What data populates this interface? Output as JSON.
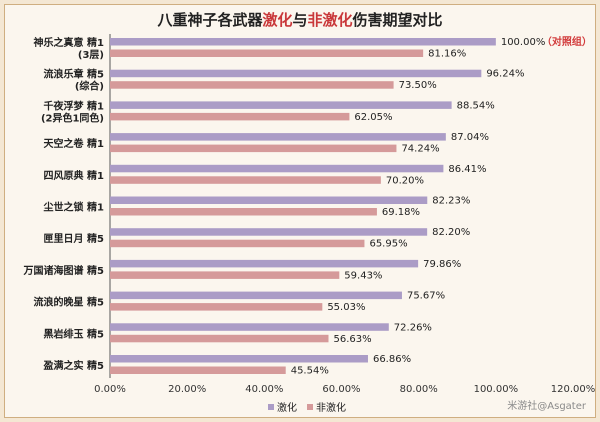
{
  "title": {
    "prefix": "八重神子各武器",
    "hl1": "激化",
    "mid": "与",
    "hl2": "非激化",
    "suffix": "伤害期望对比"
  },
  "chart_data": {
    "type": "bar",
    "orientation": "horizontal",
    "categories": [
      [
        "神乐之真意 精1",
        "(3层)"
      ],
      [
        "流浪乐章 精5",
        "(综合)"
      ],
      [
        "千夜浮梦 精1",
        "(2异色1同色)"
      ],
      [
        "天空之卷 精1"
      ],
      [
        "四风原典 精1"
      ],
      [
        "尘世之锁 精1"
      ],
      [
        "匣里日月 精5"
      ],
      [
        "万国诸海图谱 精5"
      ],
      [
        "流浪的晚星 精5"
      ],
      [
        "黑岩绯玉 精5"
      ],
      [
        "盈满之实 精5"
      ]
    ],
    "series": [
      {
        "name": "激化",
        "color": "#ab9cc6",
        "values": [
          100.0,
          96.24,
          88.54,
          87.04,
          86.41,
          82.23,
          82.2,
          79.86,
          75.67,
          72.26,
          66.86
        ],
        "labels": [
          "100.00%",
          "96.24%",
          "88.54%",
          "87.04%",
          "86.41%",
          "82.23%",
          "82.20%",
          "79.86%",
          "75.67%",
          "72.26%",
          "66.86%"
        ]
      },
      {
        "name": "非激化",
        "color": "#d59a9a",
        "values": [
          81.16,
          73.5,
          62.05,
          74.24,
          70.2,
          69.18,
          65.95,
          59.43,
          55.03,
          56.63,
          45.54
        ],
        "labels": [
          "81.16%",
          "73.50%",
          "62.05%",
          "74.24%",
          "70.20%",
          "69.18%",
          "65.95%",
          "59.43%",
          "55.03%",
          "56.63%",
          "45.54%"
        ]
      }
    ],
    "annotation": "（对照组）",
    "xlim": [
      0,
      120
    ],
    "xticks": [
      "0.00%",
      "20.00%",
      "40.00%",
      "60.00%",
      "80.00%",
      "100.00%",
      "120.00%"
    ],
    "legend": "bottom",
    "grid": false
  },
  "watermark": "米游社@Asgater"
}
